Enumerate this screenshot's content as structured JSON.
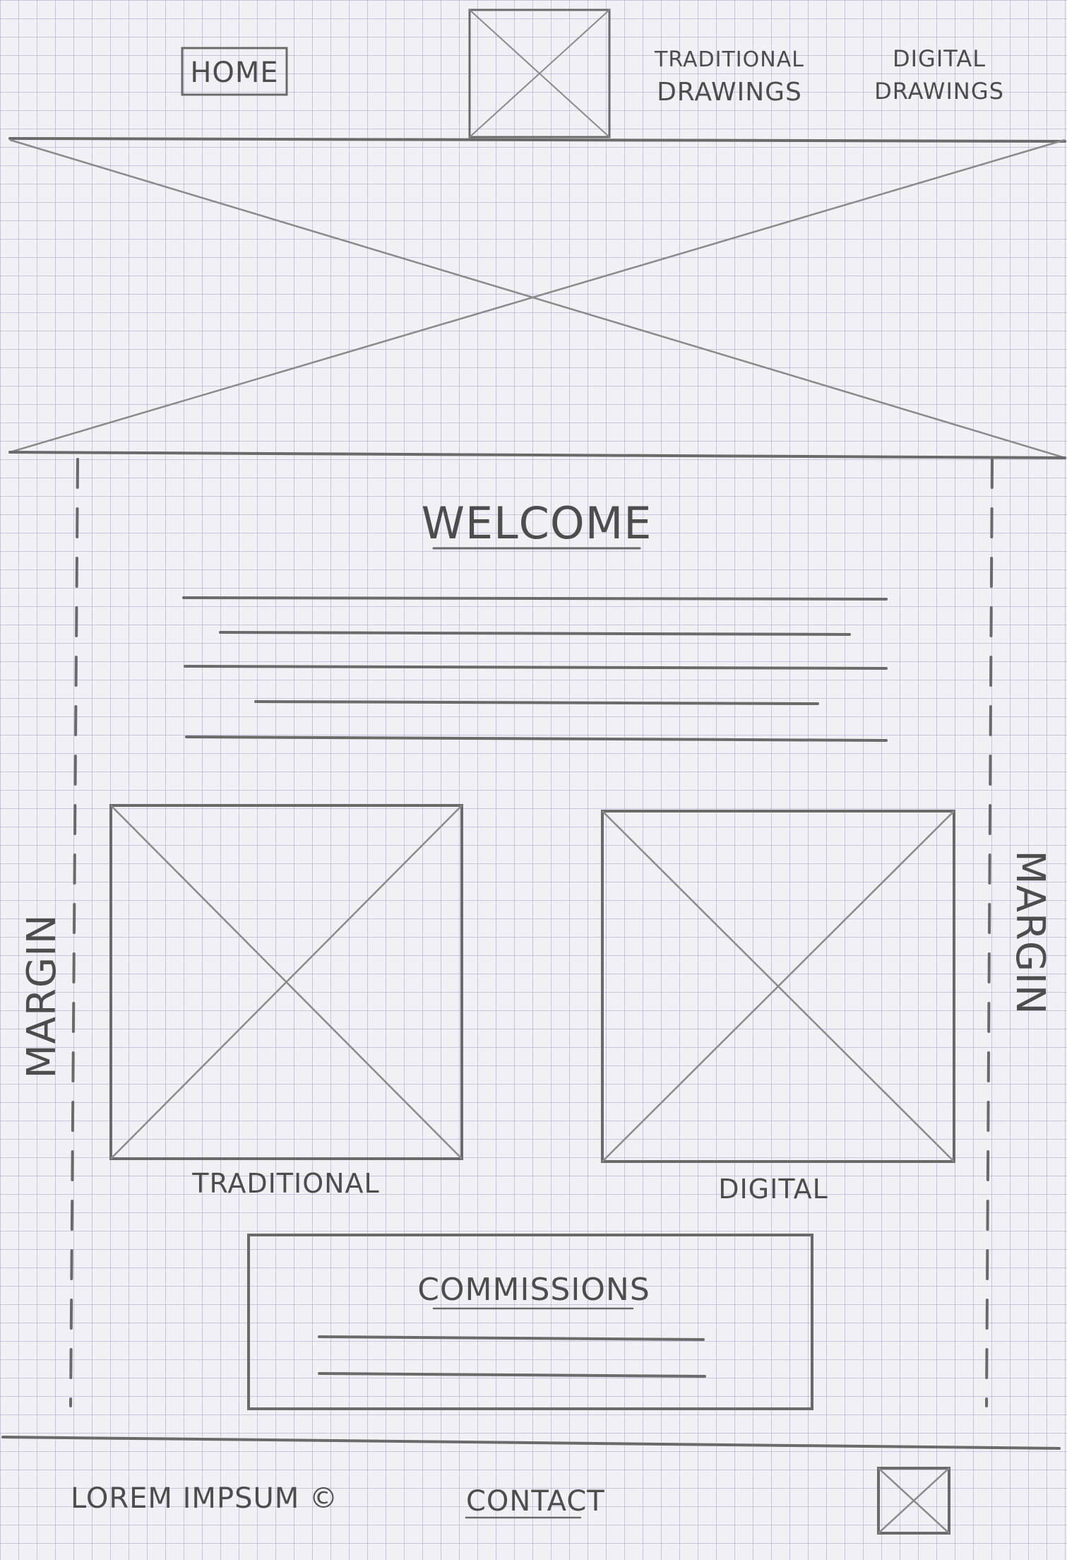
{
  "header": {
    "home_label": "HOME",
    "nav_traditional_line1": "TRADITIONAL",
    "nav_traditional_line2": "DRAWINGS",
    "nav_digital_line1": "DIGITAL",
    "nav_digital_line2": "DRAWINGS"
  },
  "main": {
    "welcome_title": "WELCOME",
    "margin_label_left": "MARGIN",
    "margin_label_right": "MARGIN",
    "gallery": [
      {
        "label": "TRADITIONAL"
      },
      {
        "label": "DIGITAL"
      }
    ],
    "commissions_title": "COMMISSIONS"
  },
  "footer": {
    "copyright_text": "LOREM IMPSUM ©",
    "contact_label": "CONTACT"
  }
}
